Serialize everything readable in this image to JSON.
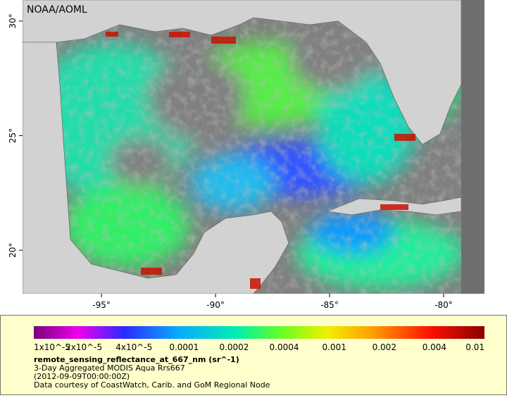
{
  "map": {
    "credit": "NOAA/AOML",
    "xlim": [
      -98.46,
      -78.21
    ],
    "ylim": [
      18.1,
      30.92
    ],
    "lon_ticks": [
      {
        "value": -95,
        "label": "-95°"
      },
      {
        "value": -90,
        "label": "-90°"
      },
      {
        "value": -85,
        "label": "-85°"
      },
      {
        "value": -80,
        "label": "-80°"
      }
    ],
    "lat_ticks": [
      {
        "value": 30,
        "label": "30°"
      },
      {
        "value": 25,
        "label": "25°"
      },
      {
        "value": 20,
        "label": "20°"
      }
    ]
  },
  "colorbar": {
    "labels": [
      "1x10^-5",
      "2x10^-5",
      "4x10^-5",
      "0.0001",
      "0.0002",
      "0.0004",
      "0.001",
      "0.002",
      "0.004",
      "0.01"
    ],
    "variable": "remote_sensing_reflectance_at_667_nm (sr^-1)",
    "product": "3-Day Aggregated MODIS Aqua Rrs667",
    "date": "(2012-09-09T00:00:00Z)",
    "source": "Data courtesy of CoastWatch, Carib. and GoM Regional Node"
  }
}
